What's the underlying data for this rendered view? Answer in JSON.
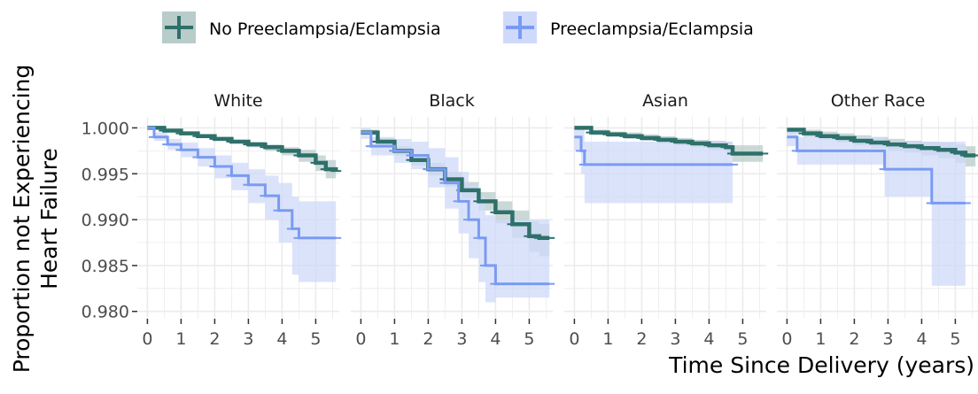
{
  "chart_data": {
    "type": "line",
    "subtype": "kaplan-meier survival curves, faceted",
    "ylabel_lines": [
      "Proportion not Experiencing",
      "Heart Failure"
    ],
    "xlabel": "Time Since Delivery (years)",
    "x_ticks": [
      0,
      1,
      2,
      3,
      4,
      5
    ],
    "y_ticks": [
      0.98,
      0.985,
      0.99,
      0.995,
      1.0
    ],
    "y_tick_labels": [
      "0.980",
      "0.985",
      "0.990",
      "0.995",
      "1.000"
    ],
    "x_tick_labels": [
      "0",
      "1",
      "2",
      "3",
      "4",
      "5"
    ],
    "xlim": [
      -0.3,
      5.7
    ],
    "ylim": [
      0.9792,
      1.0012
    ],
    "grid": true,
    "legend_position": "top",
    "legend": [
      {
        "name": "No Preeclampsia/Eclampsia",
        "color": "#2e706b",
        "fill": "#b8ccc9"
      },
      {
        "name": "Preeclampsia/Eclampsia",
        "color": "#7a9bf2",
        "fill": "#cfd9fa"
      }
    ],
    "panels": [
      {
        "title": "White",
        "series": [
          {
            "name": "No Preeclampsia/Eclampsia",
            "x": [
              0,
              0.5,
              1,
              1.5,
              2,
              2.5,
              3,
              3.5,
              4,
              4.5,
              5,
              5.3,
              5.6
            ],
            "y": [
              1.0,
              0.9997,
              0.9994,
              0.9991,
              0.9988,
              0.9985,
              0.9982,
              0.9979,
              0.9975,
              0.997,
              0.9962,
              0.9955,
              0.9953
            ],
            "lower": [
              1.0,
              0.9995,
              0.9992,
              0.9989,
              0.9986,
              0.9983,
              0.9979,
              0.9975,
              0.997,
              0.9963,
              0.9953,
              0.9945,
              0.9943
            ],
            "upper": [
              1.0,
              0.9998,
              0.9996,
              0.9993,
              0.999,
              0.9987,
              0.9985,
              0.9982,
              0.9979,
              0.9976,
              0.997,
              0.9965,
              0.9963
            ]
          },
          {
            "name": "Preeclampsia/Eclampsia",
            "x": [
              0,
              0.2,
              0.6,
              1,
              1.5,
              2,
              2.5,
              3,
              3.5,
              3.9,
              4.3,
              4.5,
              5.6
            ],
            "y": [
              1.0,
              0.999,
              0.9982,
              0.9976,
              0.9968,
              0.9958,
              0.9948,
              0.9938,
              0.9926,
              0.991,
              0.989,
              0.988,
              0.988
            ],
            "lower": [
              1.0,
              0.9986,
              0.9976,
              0.9968,
              0.9958,
              0.9945,
              0.9932,
              0.9918,
              0.99,
              0.9875,
              0.984,
              0.9832,
              0.983
            ],
            "upper": [
              1.0,
              0.9995,
              0.9988,
              0.9984,
              0.9978,
              0.997,
              0.9962,
              0.9955,
              0.9948,
              0.994,
              0.9925,
              0.992,
              0.992
            ]
          }
        ]
      },
      {
        "title": "Black",
        "series": [
          {
            "name": "No Preeclampsia/Eclampsia",
            "x": [
              0,
              0.5,
              1,
              1.5,
              2,
              2.5,
              3,
              3.5,
              4,
              4.5,
              5,
              5.3,
              5.6
            ],
            "y": [
              0.9995,
              0.9985,
              0.9975,
              0.9965,
              0.9955,
              0.9944,
              0.9932,
              0.992,
              0.9908,
              0.9895,
              0.9882,
              0.988,
              0.988
            ],
            "lower": [
              0.9992,
              0.9981,
              0.997,
              0.9959,
              0.9948,
              0.9936,
              0.9923,
              0.991,
              0.9896,
              0.988,
              0.9865,
              0.986,
              0.986
            ],
            "upper": [
              0.9998,
              0.9989,
              0.998,
              0.9971,
              0.9962,
              0.9952,
              0.9941,
              0.993,
              0.992,
              0.991,
              0.9898,
              0.9895,
              0.9895
            ]
          },
          {
            "name": "Preeclampsia/Eclampsia",
            "x": [
              0,
              0.3,
              1,
              1.5,
              2,
              2.5,
              2.9,
              3.2,
              3.5,
              3.7,
              4,
              4.5,
              5,
              5.6
            ],
            "y": [
              0.9995,
              0.998,
              0.9975,
              0.997,
              0.9955,
              0.994,
              0.992,
              0.99,
              0.988,
              0.985,
              0.983,
              0.983,
              0.983,
              0.983
            ],
            "lower": [
              0.9988,
              0.997,
              0.9962,
              0.9955,
              0.9935,
              0.9912,
              0.9885,
              0.9858,
              0.9832,
              0.981,
              0.9815,
              0.9815,
              0.9815,
              0.9815
            ],
            "upper": [
              1.0,
              0.999,
              0.9988,
              0.9985,
              0.9978,
              0.9968,
              0.9952,
              0.9938,
              0.9925,
              0.9905,
              0.99,
              0.99,
              0.99,
              0.99
            ]
          }
        ]
      },
      {
        "title": "Asian",
        "series": [
          {
            "name": "No Preeclampsia/Eclampsia",
            "x": [
              0,
              0.5,
              1,
              1.5,
              2,
              2.5,
              3,
              3.5,
              4,
              4.5,
              4.7,
              5,
              5.6
            ],
            "y": [
              1.0,
              0.9995,
              0.9993,
              0.9991,
              0.9989,
              0.9987,
              0.9985,
              0.9983,
              0.9981,
              0.9979,
              0.9972,
              0.9972,
              0.9972
            ],
            "lower": [
              0.9998,
              0.9992,
              0.999,
              0.9988,
              0.9986,
              0.9983,
              0.9981,
              0.9979,
              0.9976,
              0.9972,
              0.9963,
              0.9963,
              0.9963
            ],
            "upper": [
              1.0,
              0.9998,
              0.9996,
              0.9995,
              0.9993,
              0.9991,
              0.9989,
              0.9987,
              0.9986,
              0.9985,
              0.9981,
              0.9981,
              0.9981
            ]
          },
          {
            "name": "Preeclampsia/Eclampsia",
            "x": [
              0,
              0.2,
              0.3,
              4.7
            ],
            "y": [
              0.999,
              0.9975,
              0.996,
              0.996
            ],
            "lower": [
              0.9975,
              0.995,
              0.9918,
              0.9918
            ],
            "upper": [
              1.0,
              0.9998,
              0.9985,
              0.9985
            ]
          }
        ]
      },
      {
        "title": "Other Race",
        "series": [
          {
            "name": "No Preeclampsia/Eclampsia",
            "x": [
              0,
              0.5,
              1,
              1.5,
              2,
              2.5,
              3,
              3.5,
              4,
              4.5,
              5,
              5.3,
              5.6
            ],
            "y": [
              0.9998,
              0.9994,
              0.9991,
              0.9989,
              0.9986,
              0.9984,
              0.9982,
              0.998,
              0.9978,
              0.9976,
              0.9973,
              0.997,
              0.997
            ],
            "lower": [
              0.9994,
              0.999,
              0.9987,
              0.9984,
              0.9981,
              0.9978,
              0.9975,
              0.9973,
              0.997,
              0.9967,
              0.9962,
              0.9958,
              0.9958
            ],
            "upper": [
              1.0,
              0.9998,
              0.9996,
              0.9994,
              0.9992,
              0.999,
              0.9988,
              0.9986,
              0.9985,
              0.9984,
              0.9982,
              0.998,
              0.998
            ]
          },
          {
            "name": "Preeclampsia/Eclampsia",
            "x": [
              0,
              0.3,
              1,
              2,
              2.9,
              3.5,
              4.3,
              5.3
            ],
            "y": [
              0.999,
              0.9975,
              0.9975,
              0.9975,
              0.9955,
              0.9955,
              0.9918,
              0.9918
            ],
            "lower": [
              0.998,
              0.996,
              0.996,
              0.996,
              0.9925,
              0.9925,
              0.9828,
              0.9828
            ],
            "upper": [
              1.0,
              0.999,
              0.999,
              0.999,
              0.9985,
              0.9985,
              0.9985,
              0.9985
            ]
          }
        ]
      }
    ]
  }
}
